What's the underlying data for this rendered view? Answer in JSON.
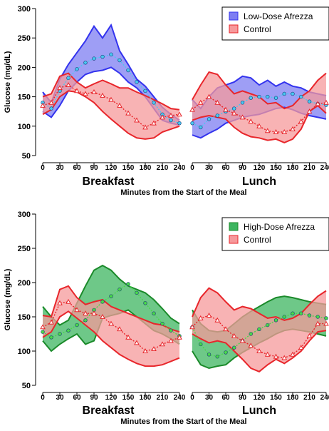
{
  "colors": {
    "low_dose": "#3333ee",
    "low_dose_fill": "#7d7df2",
    "high_dose": "#1b8a2a",
    "high_dose_fill": "#3db560",
    "control": "#e8262b",
    "control_fill": "#f6999b",
    "mean_blue": "#48c8f0",
    "mean_green": "#48d848"
  },
  "chart_data": [
    {
      "type": "area",
      "ylabel": "Glucose (mg/dL)",
      "xlabel": "Minutes from the Start of the Meal",
      "ylim": [
        50,
        300
      ],
      "yticks": [
        "50",
        "100",
        "150",
        "200",
        "250",
        "300"
      ],
      "xlim": [
        0,
        240
      ],
      "xticks": [
        "0",
        "30",
        "60",
        "90",
        "120",
        "150",
        "180",
        "210",
        "240"
      ],
      "grid": false,
      "legend": {
        "position": "top-right",
        "entries": [
          "Low-Dose Afrezza",
          "Control"
        ]
      },
      "panels": [
        {
          "meal": "Breakfast",
          "series": [
            {
              "name": "Low-Dose Afrezza",
              "x": [
                0,
                15,
                30,
                45,
                60,
                75,
                90,
                105,
                120,
                135,
                150,
                165,
                180,
                195,
                210,
                225,
                240
              ],
              "lower": [
                125,
                115,
                135,
                160,
                175,
                188,
                193,
                195,
                200,
                190,
                175,
                165,
                150,
                130,
                110,
                105,
                102
              ],
              "upper": [
                158,
                140,
                180,
                205,
                225,
                245,
                270,
                250,
                272,
                228,
                205,
                180,
                168,
                150,
                132,
                120,
                110
              ],
              "mean": [
                140,
                130,
                160,
                182,
                197,
                208,
                215,
                218,
                222,
                212,
                195,
                175,
                160,
                140,
                120,
                110,
                105
              ]
            },
            {
              "name": "Control",
              "x": [
                0,
                15,
                30,
                45,
                60,
                75,
                90,
                105,
                120,
                135,
                150,
                165,
                180,
                195,
                210,
                225,
                240
              ],
              "lower": [
                120,
                128,
                150,
                160,
                158,
                150,
                140,
                125,
                112,
                100,
                88,
                80,
                78,
                80,
                90,
                95,
                100
              ],
              "upper": [
                150,
                155,
                185,
                190,
                175,
                165,
                172,
                178,
                172,
                165,
                165,
                158,
                152,
                145,
                138,
                130,
                128
              ],
              "mean": [
                135,
                140,
                165,
                170,
                160,
                155,
                158,
                152,
                145,
                135,
                122,
                110,
                98,
                105,
                115,
                118,
                120
              ]
            }
          ]
        },
        {
          "meal": "Lunch",
          "series": [
            {
              "name": "Low-Dose Afrezza",
              "x": [
                0,
                15,
                30,
                45,
                60,
                75,
                90,
                105,
                120,
                135,
                150,
                165,
                180,
                195,
                210,
                225,
                240
              ],
              "lower": [
                85,
                80,
                88,
                95,
                105,
                110,
                115,
                118,
                120,
                125,
                130,
                132,
                128,
                122,
                118,
                115,
                112
              ],
              "upper": [
                145,
                130,
                150,
                165,
                170,
                175,
                185,
                182,
                170,
                178,
                168,
                175,
                168,
                165,
                158,
                155,
                152
              ],
              "mean": [
                105,
                98,
                112,
                118,
                125,
                130,
                140,
                148,
                150,
                150,
                148,
                155,
                155,
                150,
                142,
                138,
                136
              ]
            },
            {
              "name": "Control",
              "x": [
                0,
                15,
                30,
                45,
                60,
                75,
                90,
                105,
                120,
                135,
                150,
                165,
                180,
                195,
                210,
                225,
                240
              ],
              "lower": [
                110,
                115,
                118,
                115,
                112,
                98,
                88,
                82,
                80,
                76,
                78,
                72,
                78,
                95,
                125,
                135,
                122
              ],
              "upper": [
                145,
                170,
                192,
                188,
                170,
                155,
                160,
                155,
                150,
                138,
                140,
                130,
                135,
                150,
                160,
                178,
                190
              ],
              "mean": [
                128,
                140,
                150,
                140,
                128,
                122,
                115,
                108,
                100,
                92,
                90,
                90,
                95,
                108,
                125,
                138,
                140
              ]
            }
          ]
        }
      ]
    },
    {
      "type": "area",
      "ylabel": "Glucose (mg/dL)",
      "xlabel": "Minutes from the Start of the Meal",
      "ylim": [
        50,
        300
      ],
      "yticks": [
        "50",
        "100",
        "150",
        "200",
        "250",
        "300"
      ],
      "xlim": [
        0,
        240
      ],
      "xticks": [
        "0",
        "30",
        "60",
        "90",
        "120",
        "150",
        "180",
        "210",
        "240"
      ],
      "grid": false,
      "legend": {
        "position": "top-right",
        "entries": [
          "High-Dose Afrezza",
          "Control"
        ]
      },
      "panels": [
        {
          "meal": "Breakfast",
          "series": [
            {
              "name": "High-Dose Afrezza",
              "x": [
                0,
                15,
                30,
                45,
                60,
                75,
                90,
                105,
                120,
                135,
                150,
                165,
                180,
                195,
                210,
                225,
                240
              ],
              "lower": [
                115,
                100,
                110,
                118,
                125,
                110,
                115,
                148,
                152,
                155,
                160,
                150,
                140,
                130,
                125,
                118,
                110
              ],
              "upper": [
                165,
                150,
                138,
                145,
                170,
                195,
                218,
                225,
                218,
                205,
                195,
                190,
                185,
                175,
                162,
                148,
                140
              ],
              "mean": [
                128,
                120,
                125,
                130,
                138,
                145,
                160,
                172,
                180,
                190,
                198,
                185,
                170,
                155,
                140,
                130,
                122
              ]
            },
            {
              "name": "Control",
              "x": [
                0,
                15,
                30,
                45,
                60,
                75,
                90,
                105,
                120,
                135,
                150,
                165,
                180,
                195,
                210,
                225,
                240
              ],
              "lower": [
                120,
                128,
                150,
                158,
                148,
                138,
                128,
                115,
                105,
                95,
                88,
                82,
                78,
                78,
                80,
                85,
                90
              ],
              "upper": [
                152,
                150,
                190,
                195,
                178,
                168,
                172,
                175,
                165,
                160,
                155,
                150,
                145,
                140,
                138,
                132,
                128
              ],
              "mean": [
                135,
                142,
                170,
                172,
                160,
                155,
                155,
                150,
                140,
                132,
                120,
                112,
                100,
                103,
                110,
                115,
                120
              ]
            }
          ]
        },
        {
          "meal": "Lunch",
          "series": [
            {
              "name": "High-Dose Afrezza",
              "x": [
                0,
                15,
                30,
                45,
                60,
                75,
                90,
                105,
                120,
                135,
                150,
                165,
                180,
                195,
                210,
                225,
                240
              ],
              "lower": [
                100,
                80,
                75,
                78,
                80,
                90,
                98,
                105,
                112,
                118,
                125,
                130,
                132,
                130,
                128,
                125,
                122
              ],
              "upper": [
                160,
                140,
                130,
                128,
                130,
                140,
                150,
                158,
                165,
                172,
                178,
                180,
                178,
                175,
                172,
                170,
                168
              ],
              "mean": [
                135,
                110,
                95,
                92,
                98,
                105,
                115,
                125,
                132,
                138,
                145,
                150,
                155,
                155,
                152,
                150,
                148
              ]
            },
            {
              "name": "Control",
              "x": [
                0,
                15,
                30,
                45,
                60,
                75,
                90,
                105,
                120,
                135,
                150,
                165,
                180,
                195,
                210,
                225,
                240
              ],
              "lower": [
                125,
                118,
                112,
                115,
                112,
                100,
                88,
                75,
                70,
                80,
                88,
                82,
                90,
                100,
                115,
                128,
                130
              ],
              "upper": [
                150,
                178,
                192,
                185,
                172,
                160,
                165,
                162,
                155,
                148,
                150,
                145,
                148,
                155,
                168,
                180,
                188
              ],
              "mean": [
                135,
                148,
                152,
                145,
                132,
                122,
                115,
                108,
                100,
                95,
                92,
                90,
                95,
                105,
                122,
                140,
                140
              ]
            }
          ]
        }
      ]
    }
  ]
}
